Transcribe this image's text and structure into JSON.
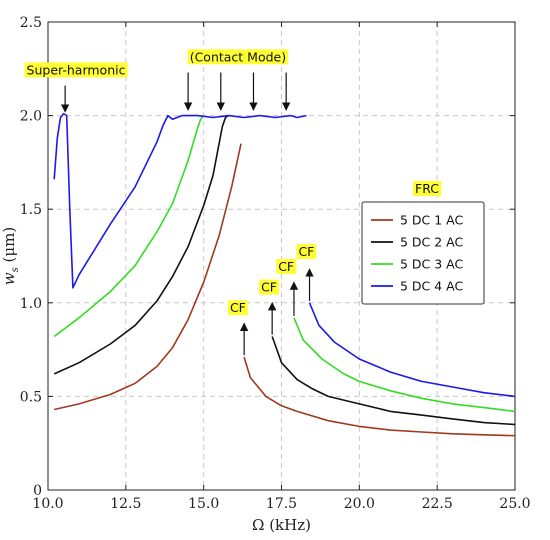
{
  "chart_data": {
    "type": "line",
    "xlabel": "Ω (kHz)",
    "ylabel": "w_s (μm)",
    "ylabel_base": "w",
    "ylabel_sub": "s",
    "ylabel_unit": " (μm)",
    "xlim": [
      10.0,
      25.0
    ],
    "ylim": [
      0,
      2.5
    ],
    "xticks": [
      "10.0",
      "12.5",
      "15.0",
      "17.5",
      "20.0",
      "22.5",
      "25.0"
    ],
    "xtick_values": [
      10.0,
      12.5,
      15.0,
      17.5,
      20.0,
      22.5,
      25.0
    ],
    "yticks": [
      "0",
      "0.5",
      "1.0",
      "1.5",
      "2.0",
      "2.5"
    ],
    "ytick_values": [
      0,
      0.5,
      1.0,
      1.5,
      2.0,
      2.5
    ],
    "grid": true,
    "legend": {
      "title": "FRC",
      "placement": "center-right"
    },
    "series": [
      {
        "name": "5 DC 1 AC",
        "color": "#a0391f",
        "segments": [
          [
            [
              10.2,
              0.43
            ],
            [
              11.0,
              0.46
            ],
            [
              12.0,
              0.51
            ],
            [
              12.8,
              0.57
            ],
            [
              13.5,
              0.66
            ],
            [
              14.0,
              0.76
            ],
            [
              14.5,
              0.91
            ],
            [
              15.0,
              1.11
            ],
            [
              15.5,
              1.36
            ],
            [
              15.9,
              1.62
            ],
            [
              16.2,
              1.85
            ]
          ],
          [
            [
              16.3,
              0.71
            ],
            [
              16.5,
              0.6
            ],
            [
              17.0,
              0.5
            ],
            [
              17.5,
              0.45
            ],
            [
              18.0,
              0.42
            ],
            [
              19.0,
              0.37
            ],
            [
              20.0,
              0.34
            ],
            [
              21.0,
              0.32
            ],
            [
              22.0,
              0.31
            ],
            [
              23.0,
              0.3
            ],
            [
              24.0,
              0.295
            ],
            [
              25.0,
              0.29
            ]
          ]
        ]
      },
      {
        "name": "5 DC 2 AC",
        "color": "#111111",
        "segments": [
          [
            [
              10.2,
              0.62
            ],
            [
              11.0,
              0.68
            ],
            [
              12.0,
              0.78
            ],
            [
              12.8,
              0.88
            ],
            [
              13.5,
              1.01
            ],
            [
              14.0,
              1.14
            ],
            [
              14.5,
              1.3
            ],
            [
              15.0,
              1.52
            ],
            [
              15.3,
              1.68
            ],
            [
              15.6,
              1.94
            ],
            [
              15.7,
              1.99
            ],
            [
              15.8,
              2.0
            ]
          ],
          [
            [
              17.2,
              0.82
            ],
            [
              17.5,
              0.68
            ],
            [
              18.0,
              0.59
            ],
            [
              18.5,
              0.54
            ],
            [
              19.0,
              0.5
            ],
            [
              20.0,
              0.46
            ],
            [
              21.0,
              0.42
            ],
            [
              22.0,
              0.4
            ],
            [
              23.0,
              0.38
            ],
            [
              24.0,
              0.36
            ],
            [
              25.0,
              0.35
            ]
          ]
        ]
      },
      {
        "name": "5 DC 3 AC",
        "color": "#33dd22",
        "segments": [
          [
            [
              10.2,
              0.82
            ],
            [
              11.0,
              0.92
            ],
            [
              12.0,
              1.06
            ],
            [
              12.8,
              1.2
            ],
            [
              13.5,
              1.38
            ],
            [
              14.0,
              1.53
            ],
            [
              14.5,
              1.76
            ],
            [
              14.8,
              1.93
            ],
            [
              14.9,
              1.98
            ],
            [
              15.0,
              2.0
            ]
          ],
          [
            [
              17.9,
              0.92
            ],
            [
              18.2,
              0.8
            ],
            [
              18.8,
              0.7
            ],
            [
              19.5,
              0.62
            ],
            [
              20.0,
              0.58
            ],
            [
              21.0,
              0.53
            ],
            [
              22.0,
              0.49
            ],
            [
              23.0,
              0.46
            ],
            [
              24.0,
              0.44
            ],
            [
              25.0,
              0.42
            ]
          ]
        ]
      },
      {
        "name": "5 DC 4 AC",
        "color": "#1a1aee",
        "segments": [
          [
            [
              10.2,
              1.66
            ],
            [
              10.3,
              1.88
            ],
            [
              10.4,
              1.99
            ],
            [
              10.5,
              2.01
            ],
            [
              10.6,
              2.0
            ],
            [
              10.7,
              1.5
            ],
            [
              10.8,
              1.08
            ],
            [
              11.0,
              1.15
            ],
            [
              12.0,
              1.42
            ],
            [
              12.8,
              1.62
            ],
            [
              13.5,
              1.86
            ],
            [
              13.7,
              1.95
            ],
            [
              13.85,
              2.0
            ],
            [
              14.0,
              1.98
            ],
            [
              14.3,
              2.0
            ],
            [
              14.8,
              2.0
            ],
            [
              15.3,
              1.99
            ],
            [
              15.8,
              2.0
            ],
            [
              16.3,
              1.99
            ],
            [
              16.8,
              2.0
            ],
            [
              17.3,
              1.99
            ],
            [
              17.8,
              2.0
            ],
            [
              18.0,
              1.99
            ],
            [
              18.3,
              2.0
            ]
          ],
          [
            [
              18.4,
              1.0
            ],
            [
              18.7,
              0.88
            ],
            [
              19.2,
              0.79
            ],
            [
              20.0,
              0.7
            ],
            [
              21.0,
              0.63
            ],
            [
              22.0,
              0.58
            ],
            [
              23.0,
              0.55
            ],
            [
              24.0,
              0.52
            ],
            [
              25.0,
              0.5
            ]
          ]
        ]
      }
    ],
    "annotations": [
      {
        "id": "super",
        "text": "Super-harmonic",
        "x": 10.9,
        "y": 2.22,
        "arrows": [
          {
            "x": 10.55,
            "y0": 2.16,
            "y1": 2.02
          }
        ]
      },
      {
        "id": "contact",
        "text": "(Contact Mode)",
        "x": 16.1,
        "y": 2.29,
        "arrows": [
          {
            "x": 14.5,
            "y0": 2.23,
            "y1": 2.03
          },
          {
            "x": 15.55,
            "y0": 2.23,
            "y1": 2.03
          },
          {
            "x": 16.6,
            "y0": 2.23,
            "y1": 2.03
          },
          {
            "x": 17.65,
            "y0": 2.23,
            "y1": 2.03
          }
        ]
      },
      {
        "id": "cf1",
        "text": "CF",
        "x": 16.1,
        "y": 0.95,
        "arrows": [
          {
            "x": 16.3,
            "y0": 0.72,
            "y1": 0.89
          }
        ]
      },
      {
        "id": "cf2",
        "text": "CF",
        "x": 17.1,
        "y": 1.06,
        "arrows": [
          {
            "x": 17.2,
            "y0": 0.83,
            "y1": 1.0
          }
        ]
      },
      {
        "id": "cf3",
        "text": "CF",
        "x": 17.65,
        "y": 1.17,
        "arrows": [
          {
            "x": 17.9,
            "y0": 0.93,
            "y1": 1.11
          }
        ]
      },
      {
        "id": "cf4",
        "text": "CF",
        "x": 18.3,
        "y": 1.25,
        "arrows": [
          {
            "x": 18.4,
            "y0": 1.01,
            "y1": 1.18
          }
        ]
      }
    ]
  }
}
